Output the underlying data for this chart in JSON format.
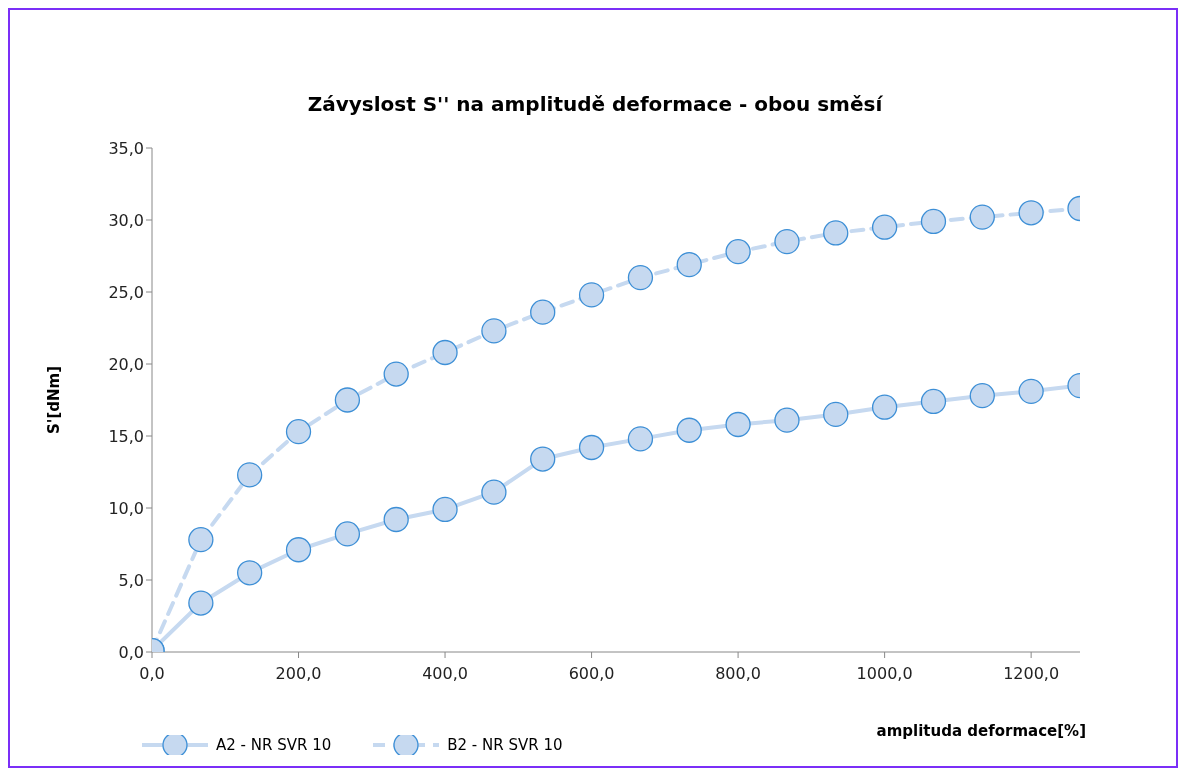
{
  "chart_data": {
    "type": "line",
    "title": "Závyslost S'' na amplitudě deformace - obou směsí",
    "xlabel": "amplituda deformace[%]",
    "ylabel": "S'[dNm]",
    "x": [
      0,
      66.7,
      133.3,
      200,
      266.7,
      333.3,
      400,
      466.7,
      533.3,
      600,
      666.7,
      733.3,
      800,
      866.7,
      933.3,
      1000,
      1066.7,
      1133.3,
      1200,
      1266.7
    ],
    "series": [
      {
        "name": "A2 - NR SVR 10",
        "color": "#c6d9f0",
        "line_style": "solid",
        "values": [
          0.1,
          3.4,
          5.5,
          7.1,
          8.2,
          9.2,
          9.9,
          11.1,
          13.4,
          14.2,
          14.8,
          15.4,
          15.8,
          16.1,
          16.5,
          17.0,
          17.4,
          17.8,
          18.1,
          18.5
        ]
      },
      {
        "name": "B2 - NR SVR 10",
        "color": "#c6d9f0",
        "line_style": "dashed",
        "values": [
          0.1,
          7.8,
          12.3,
          15.3,
          17.5,
          19.3,
          20.8,
          22.3,
          23.6,
          24.8,
          26.0,
          26.9,
          27.8,
          28.5,
          29.1,
          29.5,
          29.9,
          30.2,
          30.5,
          30.8
        ]
      }
    ],
    "xlim": [
      0,
      1266.7
    ],
    "xticks": [
      {
        "value": 0,
        "label": "0,0"
      },
      {
        "value": 200,
        "label": "200,0"
      },
      {
        "value": 400,
        "label": "400,0"
      },
      {
        "value": 600,
        "label": "600,0"
      },
      {
        "value": 800,
        "label": "800,0"
      },
      {
        "value": 1000,
        "label": "1000,0"
      },
      {
        "value": 1200,
        "label": "1200,0"
      }
    ],
    "ylim": [
      0,
      35
    ],
    "yticks": [
      {
        "value": 0,
        "label": "0,0"
      },
      {
        "value": 5,
        "label": "5,0"
      },
      {
        "value": 10,
        "label": "10,0"
      },
      {
        "value": 15,
        "label": "15,0"
      },
      {
        "value": 20,
        "label": "20,0"
      },
      {
        "value": 25,
        "label": "25,0"
      },
      {
        "value": 30,
        "label": "30,0"
      },
      {
        "value": 35,
        "label": "35,0"
      }
    ],
    "grid": false,
    "legend": "bottom left",
    "marker": "circle"
  }
}
